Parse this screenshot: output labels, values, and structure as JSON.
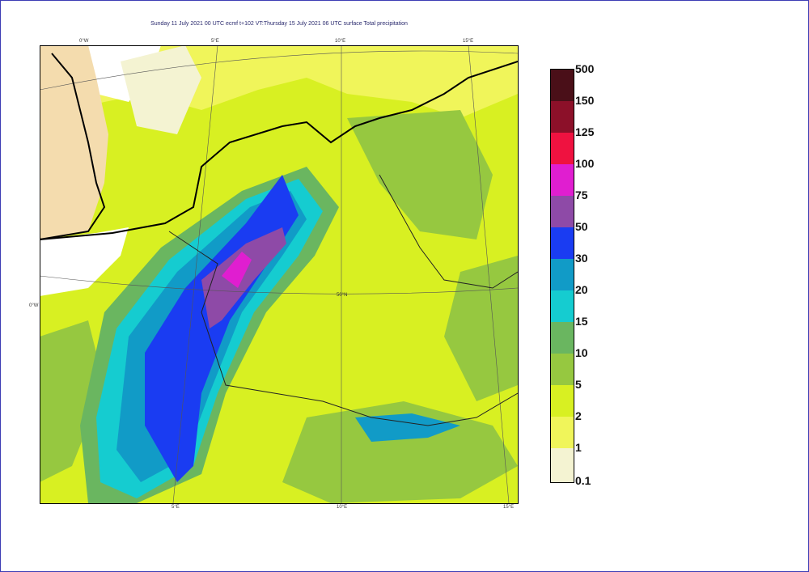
{
  "title": "Sunday 11 July 2021 00 UTC ecmf t+102 VT:Thursday 15 July 2021 06 UTC surface  Total precipitation",
  "map_labels": {
    "top": [
      "0°W",
      "5°E",
      "10°E",
      "15°E"
    ],
    "bottom": [
      "5°E",
      "10°E",
      "15°E"
    ],
    "left": "0°W",
    "lat": "50°N"
  },
  "legend": {
    "levels": [
      "500",
      "150",
      "125",
      "100",
      "75",
      "50",
      "30",
      "20",
      "15",
      "10",
      "5",
      "2",
      "1",
      "0.1"
    ],
    "colors": [
      "#4a0f18",
      "#8c1029",
      "#ef1240",
      "#e01ed0",
      "#8e4aa7",
      "#1a3cf2",
      "#119bc7",
      "#15ccd0",
      "#6ab660",
      "#96c840",
      "#d8f022",
      "#f0f55a",
      "#f4f3d2"
    ]
  },
  "colors": {
    "frame": "#3c3cb4",
    "land_light": "#e7f0a8",
    "uk_tan": "#f4dcae"
  }
}
